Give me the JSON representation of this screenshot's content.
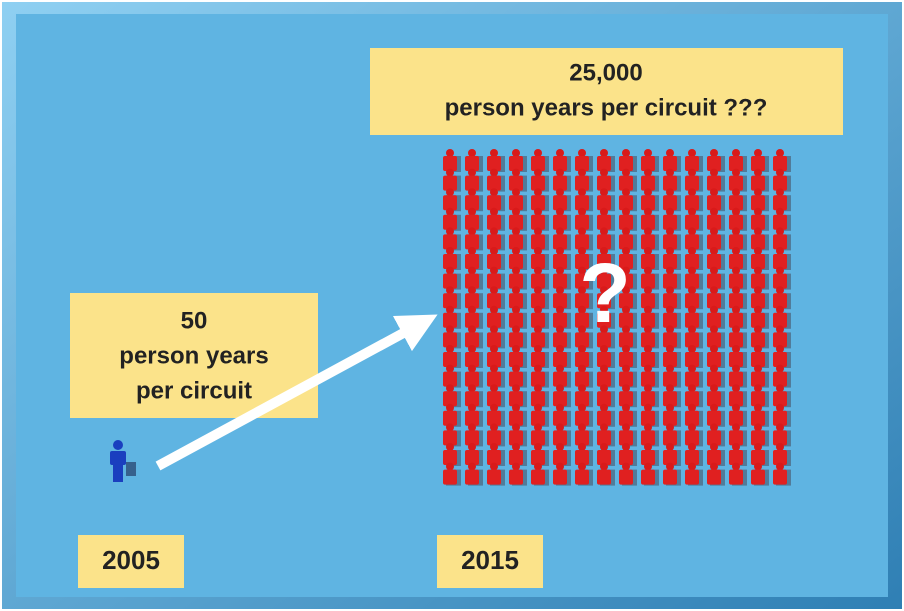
{
  "left_box": {
    "lines": [
      "50",
      "person years",
      "per circuit"
    ]
  },
  "right_box": {
    "lines": [
      "25,000",
      "person years per circuit ???"
    ]
  },
  "question_mark": "?",
  "years": [
    "2005",
    "2015"
  ]
}
